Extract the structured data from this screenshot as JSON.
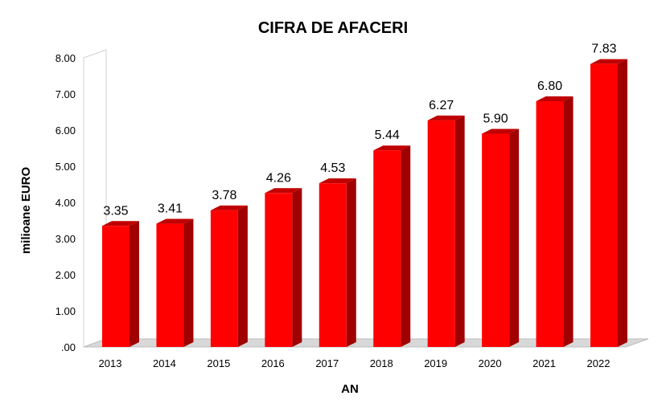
{
  "chart_data": {
    "type": "bar",
    "title": "CIFRA DE AFACERI",
    "xlabel": "AN",
    "ylabel": "milioane EURO",
    "categories": [
      "2013",
      "2014",
      "2015",
      "2016",
      "2017",
      "2018",
      "2019",
      "2020",
      "2021",
      "2022"
    ],
    "values": [
      3.35,
      3.41,
      3.78,
      4.26,
      4.53,
      5.44,
      6.27,
      5.9,
      6.8,
      7.83
    ],
    "data_labels": [
      "3.35",
      "3.41",
      "3.78",
      "4.26",
      "4.53",
      "5.44",
      "6.27",
      "5.90",
      "6.80",
      "7.83"
    ],
    "yticks": [
      0,
      1,
      2,
      3,
      4,
      5,
      6,
      7,
      8
    ],
    "ytick_labels": [
      ".00",
      "1.00",
      "2.00",
      "3.00",
      "4.00",
      "5.00",
      "6.00",
      "7.00",
      "8.00"
    ],
    "ylim": [
      0,
      8
    ],
    "grid": false,
    "legend": "none",
    "style": "3d-bar",
    "colors": {
      "bar_front": "#ff0000",
      "bar_side": "#a00000",
      "bar_top": "#c00000",
      "wall": "#d0d0d0",
      "floor": "#d8d8d8"
    }
  }
}
